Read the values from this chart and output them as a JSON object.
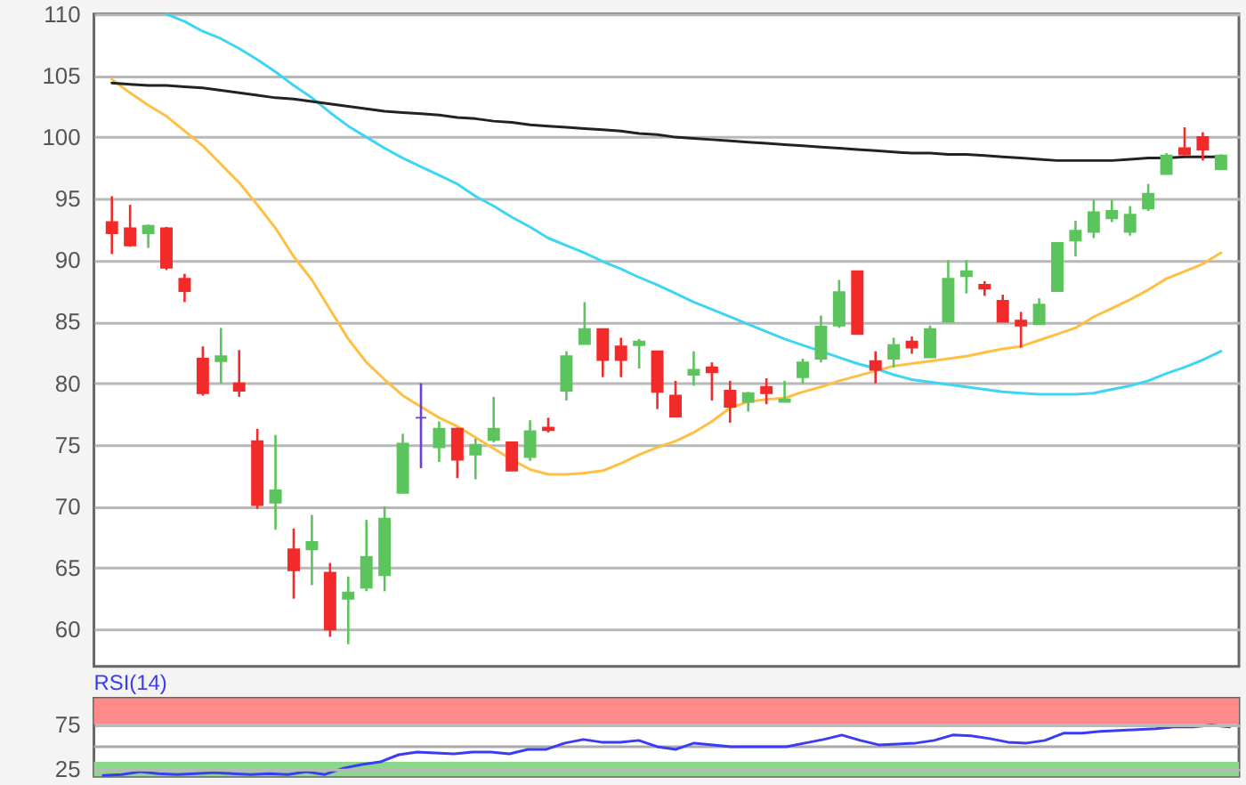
{
  "chart_data": [
    {
      "type": "candlestick",
      "categories": [
        null,
        null,
        null,
        null,
        null,
        null,
        null,
        null,
        null,
        null,
        null,
        null,
        null,
        null,
        null,
        null,
        null,
        null,
        null,
        null,
        null,
        null,
        null,
        null,
        null,
        null,
        null,
        null,
        null,
        null,
        null,
        null,
        null,
        null,
        null,
        null,
        null,
        null,
        null,
        null,
        null,
        null,
        null,
        null,
        null,
        null,
        null,
        null,
        null,
        null,
        null,
        null,
        null,
        null,
        null,
        null,
        null,
        null,
        null,
        null,
        null,
        null
      ],
      "ohlc": [
        [
          93.1,
          95.2,
          90.5,
          92.2
        ],
        [
          92.6,
          94.5,
          91.1,
          91.2
        ],
        [
          92.2,
          92.9,
          91.0,
          92.8
        ],
        [
          92.6,
          92.7,
          89.2,
          89.4
        ],
        [
          88.5,
          88.9,
          86.6,
          87.5
        ],
        [
          82.0,
          83.0,
          79.0,
          79.2
        ],
        [
          81.8,
          84.5,
          80.0,
          82.2
        ],
        [
          80.0,
          82.7,
          78.9,
          79.4
        ],
        [
          75.3,
          76.3,
          69.8,
          70.1
        ],
        [
          70.3,
          75.8,
          68.1,
          71.3
        ],
        [
          66.5,
          68.2,
          62.5,
          64.8
        ],
        [
          66.5,
          69.3,
          63.6,
          67.1
        ],
        [
          64.6,
          65.4,
          59.4,
          60.0
        ],
        [
          62.5,
          64.3,
          58.8,
          63.0
        ],
        [
          63.4,
          68.9,
          63.1,
          65.9
        ],
        [
          64.4,
          70.0,
          63.1,
          69.0
        ],
        [
          71.1,
          75.9,
          71.1,
          75.1
        ],
        [
          77.2,
          80.0,
          73.1,
          77.2
        ],
        [
          74.8,
          76.9,
          73.6,
          76.3
        ],
        [
          76.3,
          76.4,
          72.3,
          73.8
        ],
        [
          74.2,
          75.5,
          72.2,
          75.0
        ],
        [
          75.4,
          78.9,
          75.2,
          76.3
        ],
        [
          75.2,
          75.2,
          72.9,
          72.9
        ],
        [
          74.0,
          77.0,
          73.7,
          76.1
        ],
        [
          76.4,
          77.2,
          76.0,
          76.2
        ],
        [
          79.4,
          82.6,
          78.6,
          82.2
        ],
        [
          83.2,
          86.6,
          83.2,
          84.4
        ],
        [
          84.4,
          84.4,
          80.5,
          81.9
        ],
        [
          83.0,
          83.7,
          80.5,
          81.9
        ],
        [
          83.1,
          83.6,
          81.2,
          83.4
        ],
        [
          82.6,
          82.6,
          77.9,
          79.3
        ],
        [
          79.0,
          80.2,
          77.3,
          77.3
        ],
        [
          80.7,
          82.6,
          79.8,
          81.1
        ],
        [
          81.3,
          81.7,
          78.6,
          80.9
        ],
        [
          79.4,
          80.2,
          76.8,
          78.1
        ],
        [
          78.5,
          79.3,
          77.7,
          79.2
        ],
        [
          79.7,
          80.4,
          78.3,
          79.2
        ],
        [
          78.5,
          80.2,
          78.5,
          78.7
        ],
        [
          80.5,
          82.0,
          80.0,
          81.7
        ],
        [
          82.0,
          85.5,
          81.7,
          84.6
        ],
        [
          84.7,
          88.4,
          84.5,
          87.4
        ],
        [
          89.1,
          89.1,
          84.0,
          84.0
        ],
        [
          81.8,
          82.6,
          80.0,
          81.1
        ],
        [
          82.0,
          83.7,
          81.3,
          83.1
        ],
        [
          83.4,
          83.8,
          82.4,
          82.9
        ],
        [
          82.1,
          84.7,
          82.1,
          84.4
        ],
        [
          85.0,
          90.0,
          85.0,
          88.5
        ],
        [
          88.7,
          90.0,
          87.3,
          89.1
        ],
        [
          88.0,
          88.3,
          87.1,
          87.7
        ],
        [
          86.7,
          87.2,
          85.0,
          85.0
        ],
        [
          85.1,
          85.8,
          82.9,
          84.7
        ],
        [
          84.8,
          86.9,
          84.8,
          86.4
        ],
        [
          87.5,
          91.4,
          87.5,
          91.4
        ],
        [
          91.6,
          93.2,
          90.3,
          92.4
        ],
        [
          92.3,
          94.9,
          91.8,
          93.9
        ],
        [
          93.4,
          94.9,
          93.1,
          94.0
        ],
        [
          92.3,
          94.4,
          92.0,
          93.7
        ],
        [
          94.2,
          96.2,
          94.0,
          95.4
        ],
        [
          97.0,
          98.7,
          97.0,
          98.5
        ],
        [
          99.1,
          100.8,
          98.5,
          98.6
        ],
        [
          100.0,
          100.4,
          98.1,
          99.0
        ],
        [
          97.4,
          98.6,
          97.4,
          98.5
        ]
      ],
      "colors": [
        "#f22a2a",
        "#f22a2a",
        "#5cc45c",
        "#f22a2a",
        "#f22a2a",
        "#f22a2a",
        "#5cc45c",
        "#f22a2a",
        "#f22a2a",
        "#5cc45c",
        "#f22a2a",
        "#5cc45c",
        "#f22a2a",
        "#5cc45c",
        "#5cc45c",
        "#5cc45c",
        "#5cc45c",
        "#6a3fd6",
        "#5cc45c",
        "#f22a2a",
        "#5cc45c",
        "#5cc45c",
        "#f22a2a",
        "#5cc45c",
        "#f22a2a",
        "#5cc45c",
        "#5cc45c",
        "#f22a2a",
        "#f22a2a",
        "#5cc45c",
        "#f22a2a",
        "#f22a2a",
        "#5cc45c",
        "#f22a2a",
        "#f22a2a",
        "#5cc45c",
        "#f22a2a",
        "#5cc45c",
        "#5cc45c",
        "#5cc45c",
        "#5cc45c",
        "#f22a2a",
        "#f22a2a",
        "#5cc45c",
        "#f22a2a",
        "#5cc45c",
        "#5cc45c",
        "#5cc45c",
        "#f22a2a",
        "#f22a2a",
        "#f22a2a",
        "#5cc45c",
        "#5cc45c",
        "#5cc45c",
        "#5cc45c",
        "#5cc45c",
        "#5cc45c",
        "#5cc45c",
        "#5cc45c",
        "#f22a2a",
        "#f22a2a",
        "#5cc45c"
      ],
      "series": [
        {
          "type": "line",
          "color": "#ffbf40",
          "values": [
            104.7,
            103.6,
            102.6,
            101.7,
            100.5,
            99.3,
            97.8,
            96.3,
            94.5,
            92.6,
            90.3,
            88.4,
            86.0,
            83.6,
            81.7,
            80.3,
            79.0,
            78.1,
            77.2,
            76.5,
            75.6,
            74.7,
            73.8,
            73.0,
            72.6,
            72.6,
            72.7,
            72.9,
            73.5,
            74.2,
            74.8,
            75.3,
            76.0,
            76.9,
            78.0,
            78.5,
            78.7,
            78.8,
            79.3,
            79.7,
            80.2,
            80.6,
            81.0,
            81.4,
            81.6,
            81.8,
            82.0,
            82.2,
            82.5,
            82.8,
            83.0,
            83.5,
            84.0,
            84.5,
            85.4,
            86.1,
            86.8,
            87.6,
            88.5,
            89.1,
            89.7,
            90.6
          ]
        },
        {
          "type": "line",
          "color": "#3dd5f3",
          "values": [
            null,
            null,
            null,
            110.0,
            109.4,
            108.6,
            108.0,
            107.2,
            106.3,
            105.3,
            104.2,
            103.2,
            102.0,
            100.9,
            100.0,
            99.1,
            98.3,
            97.6,
            96.9,
            96.2,
            95.2,
            94.4,
            93.5,
            92.7,
            91.8,
            91.2,
            90.6,
            89.9,
            89.3,
            88.6,
            88.0,
            87.3,
            86.6,
            86.0,
            85.4,
            84.8,
            84.2,
            83.6,
            83.1,
            82.6,
            82.1,
            81.6,
            81.2,
            80.7,
            80.3,
            80.1,
            79.9,
            79.7,
            79.5,
            79.3,
            79.2,
            79.1,
            79.1,
            79.1,
            79.2,
            79.5,
            79.8,
            80.2,
            80.8,
            81.3,
            81.9,
            82.6
          ]
        },
        {
          "type": "line",
          "color": "#222222",
          "values": [
            104.4,
            104.3,
            104.2,
            104.2,
            104.1,
            104.0,
            103.8,
            103.6,
            103.4,
            103.2,
            103.1,
            102.9,
            102.7,
            102.5,
            102.3,
            102.1,
            102.0,
            101.9,
            101.8,
            101.6,
            101.5,
            101.3,
            101.2,
            101.0,
            100.9,
            100.8,
            100.7,
            100.6,
            100.5,
            100.3,
            100.2,
            100.0,
            99.9,
            99.8,
            99.7,
            99.6,
            99.5,
            99.4,
            99.3,
            99.2,
            99.1,
            99.0,
            98.9,
            98.8,
            98.7,
            98.7,
            98.6,
            98.6,
            98.5,
            98.4,
            98.3,
            98.2,
            98.1,
            98.1,
            98.1,
            98.1,
            98.2,
            98.3,
            98.3,
            98.4,
            98.4,
            98.4
          ]
        }
      ],
      "ylim": [
        57,
        110
      ],
      "yticks": [
        60,
        65,
        70,
        75,
        80,
        85,
        90,
        95,
        100,
        105,
        110
      ],
      "grid": "y",
      "tick_labels": "y"
    },
    {
      "type": "line",
      "title": "RSI(14)",
      "categories": [
        null,
        null,
        null,
        null,
        null,
        null,
        null,
        null,
        null,
        null,
        null,
        null,
        null,
        null,
        null,
        null,
        null,
        null,
        null,
        null,
        null,
        null,
        null,
        null,
        null,
        null,
        null,
        null,
        null,
        null,
        null,
        null,
        null,
        null,
        null,
        null,
        null,
        null,
        null,
        null,
        null,
        null,
        null,
        null,
        null,
        null,
        null,
        null,
        null,
        null,
        null,
        null,
        null,
        null,
        null,
        null,
        null,
        null,
        null,
        null,
        null,
        null
      ],
      "series": [
        {
          "color": "#3b3bf5",
          "values": [
            18,
            19,
            22,
            20,
            19,
            20,
            21,
            20,
            19,
            20,
            19,
            22,
            19,
            26,
            30,
            33,
            41,
            44,
            43,
            42,
            44,
            44,
            42,
            47,
            47,
            54,
            58,
            55,
            55,
            57,
            50,
            47,
            54,
            52,
            50,
            50,
            50,
            50,
            54,
            58,
            63,
            57,
            52,
            53,
            54,
            57,
            63,
            62,
            59,
            55,
            54,
            57,
            65,
            65,
            67,
            68,
            69,
            70,
            72,
            72,
            74,
            72
          ]
        }
      ],
      "ylim": [
        17,
        104
      ],
      "yticks": [
        25,
        75
      ],
      "grid": "y",
      "tick_labels": "y",
      "bands": [
        {
          "axis": "y",
          "from": 75,
          "to": 104,
          "color": "#ff8a8a"
        },
        {
          "axis": "y",
          "from": 17,
          "to": 33,
          "color": "#8ad88a"
        }
      ],
      "ref_lines": [
        {
          "axis": "y",
          "value": 50,
          "color": "#aaaaaa"
        }
      ]
    }
  ]
}
